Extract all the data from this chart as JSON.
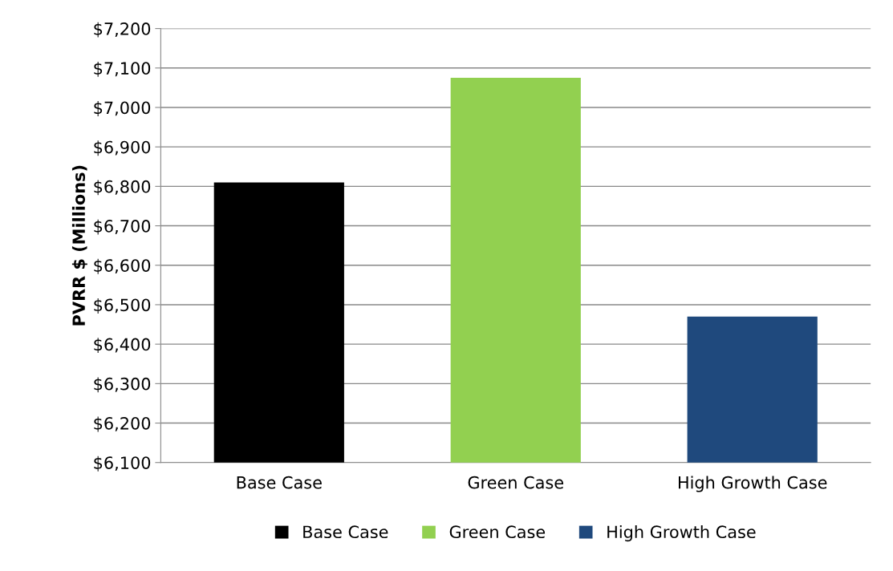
{
  "chart_data": {
    "type": "bar",
    "ylabel": "PVRR $ (Millions)",
    "categories": [
      "Base Case",
      "Green Case",
      "High Growth Case"
    ],
    "series": [
      {
        "name": "Base Case",
        "color": "#000000",
        "values": [
          6810,
          null,
          null
        ]
      },
      {
        "name": "Green Case",
        "color": "#92d050",
        "values": [
          null,
          7075,
          null
        ]
      },
      {
        "name": "High Growth Case",
        "color": "#1f497d",
        "values": [
          null,
          null,
          6470
        ]
      }
    ],
    "ylim": [
      6100,
      7200
    ],
    "yticks": [
      {
        "value": 6100,
        "label": "$6,100"
      },
      {
        "value": 6200,
        "label": "$6,200"
      },
      {
        "value": 6300,
        "label": "$6,300"
      },
      {
        "value": 6400,
        "label": "$6,400"
      },
      {
        "value": 6500,
        "label": "$6,500"
      },
      {
        "value": 6600,
        "label": "$6,600"
      },
      {
        "value": 6700,
        "label": "$6,700"
      },
      {
        "value": 6800,
        "label": "$6,800"
      },
      {
        "value": 6900,
        "label": "$6,900"
      },
      {
        "value": 7000,
        "label": "$7,000"
      },
      {
        "value": 7100,
        "label": "$7,100"
      },
      {
        "value": 7200,
        "label": "$7,200"
      }
    ],
    "grid": "y",
    "legend": "bottom"
  }
}
